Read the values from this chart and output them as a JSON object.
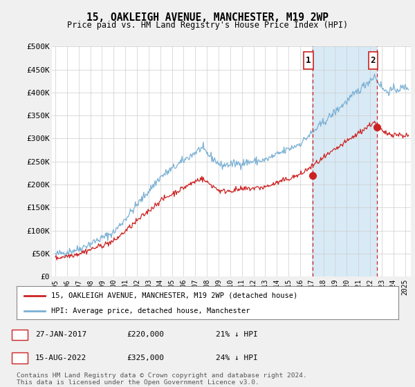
{
  "title": "15, OAKLEIGH AVENUE, MANCHESTER, M19 2WP",
  "subtitle": "Price paid vs. HM Land Registry's House Price Index (HPI)",
  "ylabel_ticks": [
    "£0",
    "£50K",
    "£100K",
    "£150K",
    "£200K",
    "£250K",
    "£300K",
    "£350K",
    "£400K",
    "£450K",
    "£500K"
  ],
  "ytick_values": [
    0,
    50000,
    100000,
    150000,
    200000,
    250000,
    300000,
    350000,
    400000,
    450000,
    500000
  ],
  "ylim": [
    0,
    500000
  ],
  "xlim_start": 1994.7,
  "xlim_end": 2025.5,
  "hpi_color": "#7ab0d4",
  "hpi_fill_color": "#d8eaf5",
  "price_color": "#cc2222",
  "marker1_x": 2017.07,
  "marker1_y": 220000,
  "marker2_x": 2022.62,
  "marker2_y": 325000,
  "legend_line1": "15, OAKLEIGH AVENUE, MANCHESTER, M19 2WP (detached house)",
  "legend_line2": "HPI: Average price, detached house, Manchester",
  "footer": "Contains HM Land Registry data © Crown copyright and database right 2024.\nThis data is licensed under the Open Government Licence v3.0.",
  "background_color": "#f0f0f0",
  "plot_bg_color": "#ffffff"
}
